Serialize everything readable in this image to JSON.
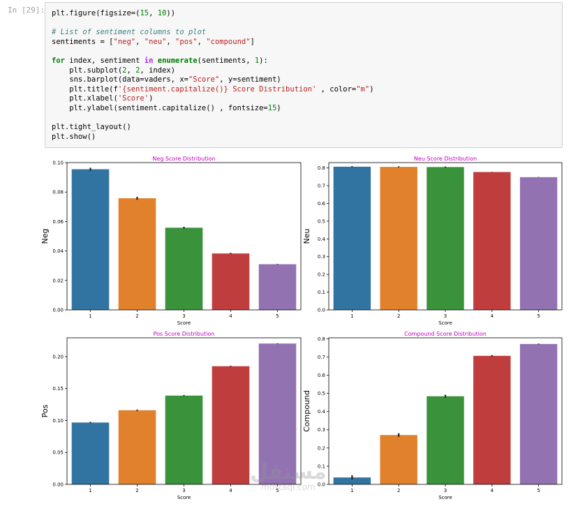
{
  "cell": {
    "prompt": "In [29]:",
    "lines": [
      [
        [
          "plt.figure(figsize=(",
          "t"
        ],
        [
          "15",
          "num"
        ],
        [
          ", ",
          "t"
        ],
        [
          "10",
          "num"
        ],
        [
          "))",
          "t"
        ]
      ],
      [],
      [
        [
          "# List of sentiment columns to plot",
          "cm"
        ]
      ],
      [
        [
          "sentiments = [",
          "t"
        ],
        [
          "\"neg\"",
          "str"
        ],
        [
          ", ",
          "t"
        ],
        [
          "\"neu\"",
          "str"
        ],
        [
          ", ",
          "t"
        ],
        [
          "\"pos\"",
          "str"
        ],
        [
          ", ",
          "t"
        ],
        [
          "\"compound\"",
          "str"
        ],
        [
          "]",
          "t"
        ]
      ],
      [],
      [
        [
          "for",
          "kw"
        ],
        [
          " index, sentiment ",
          "t"
        ],
        [
          "in",
          "op"
        ],
        [
          " ",
          "t"
        ],
        [
          "enumerate",
          "kw"
        ],
        [
          "(sentiments, ",
          "t"
        ],
        [
          "1",
          "num"
        ],
        [
          "):",
          "t"
        ]
      ],
      [
        [
          "    plt.subplot(",
          "t"
        ],
        [
          "2",
          "num"
        ],
        [
          ", ",
          "t"
        ],
        [
          "2",
          "num"
        ],
        [
          ", index)",
          "t"
        ]
      ],
      [
        [
          "    sns.barplot(data=vaders, x=",
          "t"
        ],
        [
          "\"Score\"",
          "str"
        ],
        [
          ", y=sentiment)",
          "t"
        ]
      ],
      [
        [
          "    plt.title(f",
          "t"
        ],
        [
          "'{sentiment.capitalize()} Score Distribution'",
          "str"
        ],
        [
          " , color=",
          "t"
        ],
        [
          "\"m\"",
          "str"
        ],
        [
          ")",
          "t"
        ]
      ],
      [
        [
          "    plt.xlabel(",
          "t"
        ],
        [
          "'Score'",
          "str"
        ],
        [
          ")",
          "t"
        ]
      ],
      [
        [
          "    plt.ylabel(sentiment.capitalize() , fontsize=",
          "t"
        ],
        [
          "15",
          "num"
        ],
        [
          ")",
          "t"
        ]
      ],
      [],
      [
        [
          "plt.tight_layout()",
          "t"
        ]
      ],
      [
        [
          "plt.show()",
          "t"
        ]
      ]
    ]
  },
  "colors": {
    "bars": [
      "#3274a1",
      "#e1812c",
      "#3a923a",
      "#c03d3e",
      "#9372b2"
    ],
    "title": "#c000c0",
    "errbar": "#222222"
  },
  "watermark": {
    "main": "مستقل",
    "sub": "mostaql.com"
  },
  "chart_data": [
    {
      "type": "bar",
      "title": "Neg Score Distribution",
      "xlabel": "Score",
      "ylabel": "Neg",
      "categories": [
        "1",
        "2",
        "3",
        "4",
        "5"
      ],
      "values": [
        0.0955,
        0.0758,
        0.0558,
        0.0383,
        0.031
      ],
      "errors": [
        0.001,
        0.001,
        0.0006,
        0.0004,
        0.0002
      ],
      "ylim": [
        0,
        0.1
      ],
      "yticks": [
        "0.00",
        "0.02",
        "0.04",
        "0.06",
        "0.08",
        "0.10"
      ],
      "grid": false
    },
    {
      "type": "bar",
      "title": "Neu Score Distribution",
      "xlabel": "Score",
      "ylabel": "Neu",
      "categories": [
        "1",
        "2",
        "3",
        "4",
        "5"
      ],
      "values": [
        0.807,
        0.806,
        0.805,
        0.777,
        0.748
      ],
      "errors": [
        0.003,
        0.003,
        0.003,
        0.001,
        0.001
      ],
      "ylim": [
        0,
        0.83
      ],
      "yticks": [
        "0.0",
        "0.1",
        "0.2",
        "0.3",
        "0.4",
        "0.5",
        "0.6",
        "0.7",
        "0.8"
      ],
      "grid": false
    },
    {
      "type": "bar",
      "title": "Pos Score Distribution",
      "xlabel": "Score",
      "ylabel": "Pos",
      "categories": [
        "1",
        "2",
        "3",
        "4",
        "5"
      ],
      "values": [
        0.0968,
        0.1161,
        0.139,
        0.185,
        0.2205
      ],
      "errors": [
        0.001,
        0.001,
        0.0008,
        0.0007,
        0.0004
      ],
      "ylim": [
        0,
        0.2295
      ],
      "yticks": [
        "0.00",
        "0.05",
        "0.10",
        "0.15",
        "0.20"
      ],
      "grid": false
    },
    {
      "type": "bar",
      "title": "Compound Score Distribution",
      "xlabel": "Score",
      "ylabel": "Compound",
      "categories": [
        "1",
        "2",
        "3",
        "4",
        "5"
      ],
      "values": [
        0.038,
        0.271,
        0.484,
        0.706,
        0.771
      ],
      "errors": [
        0.012,
        0.01,
        0.008,
        0.004,
        0.002
      ],
      "ylim": [
        0,
        0.805
      ],
      "yticks": [
        "0.0",
        "0.1",
        "0.2",
        "0.3",
        "0.4",
        "0.5",
        "0.6",
        "0.7",
        "0.8"
      ],
      "grid": false
    }
  ]
}
